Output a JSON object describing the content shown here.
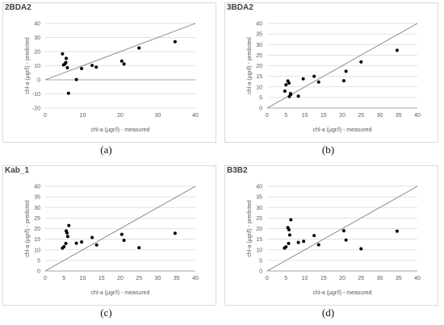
{
  "chart_data": [
    {
      "type": "scatter",
      "title": "2BDA2",
      "caption": "(a)",
      "xlabel": "chl-a (μgr/l) - measured",
      "ylabel": "chl-a (μgr/l) - predicted",
      "xlim": [
        0,
        40
      ],
      "ylim": [
        -20,
        40
      ],
      "xticks": [
        0,
        10,
        20,
        30,
        40
      ],
      "yticks": [
        -20,
        -10,
        0,
        10,
        20,
        30,
        40
      ],
      "reference_line": "1:1",
      "points": [
        [
          4.6,
          18.4
        ],
        [
          4.9,
          10.6
        ],
        [
          5.3,
          11.4
        ],
        [
          5.6,
          15.2
        ],
        [
          5.5,
          12.3
        ],
        [
          5.9,
          8.6
        ],
        [
          6.2,
          -9.5
        ],
        [
          8.3,
          0.2
        ],
        [
          9.7,
          8.0
        ],
        [
          12.5,
          10.2
        ],
        [
          13.6,
          9.0
        ],
        [
          20.4,
          13.3
        ],
        [
          21.0,
          11.2
        ],
        [
          25.0,
          22.6
        ],
        [
          34.6,
          27.0
        ]
      ]
    },
    {
      "type": "scatter",
      "title": "3BDA2",
      "caption": "(b)",
      "xlabel": "chl-a (μgr/l) - measured",
      "ylabel": "chl-a (μgr/l) - predicted",
      "xlim": [
        0,
        40
      ],
      "ylim": [
        0,
        40
      ],
      "xticks": [
        0,
        5,
        10,
        15,
        20,
        25,
        30,
        35,
        40
      ],
      "yticks": [
        0,
        5,
        10,
        15,
        20,
        25,
        30,
        35,
        40
      ],
      "reference_line": "1:1",
      "points": [
        [
          4.7,
          8.0
        ],
        [
          5.0,
          11.0
        ],
        [
          5.5,
          12.8
        ],
        [
          5.8,
          11.8
        ],
        [
          5.9,
          5.5
        ],
        [
          6.3,
          6.5
        ],
        [
          6.2,
          6.8
        ],
        [
          8.3,
          5.6
        ],
        [
          9.6,
          13.8
        ],
        [
          12.5,
          15.0
        ],
        [
          13.7,
          12.3
        ],
        [
          20.4,
          12.9
        ],
        [
          21.0,
          17.4
        ],
        [
          25.0,
          21.8
        ],
        [
          34.6,
          27.3
        ]
      ]
    },
    {
      "type": "scatter",
      "title": "Kab_1",
      "caption": "(c)",
      "xlabel": "chl-a (μgr/l) - measured",
      "ylabel": "chl-a (μgr/l) - predicted",
      "xlim": [
        0,
        40
      ],
      "ylim": [
        0,
        40
      ],
      "xticks": [
        0,
        5,
        10,
        15,
        20,
        25,
        30,
        35,
        40
      ],
      "yticks": [
        0,
        5,
        10,
        15,
        20,
        25,
        30,
        35,
        40
      ],
      "reference_line": "1:1",
      "points": [
        [
          4.6,
          10.8
        ],
        [
          5.0,
          11.5
        ],
        [
          5.5,
          13.0
        ],
        [
          5.6,
          18.9
        ],
        [
          5.8,
          18.0
        ],
        [
          6.0,
          16.3
        ],
        [
          6.3,
          21.5
        ],
        [
          8.3,
          13.1
        ],
        [
          9.7,
          13.7
        ],
        [
          12.5,
          15.8
        ],
        [
          13.7,
          12.3
        ],
        [
          20.4,
          17.3
        ],
        [
          21.0,
          14.5
        ],
        [
          25.0,
          11.0
        ],
        [
          34.6,
          17.8
        ]
      ]
    },
    {
      "type": "scatter",
      "title": "B3B2",
      "caption": "(d)",
      "xlabel": "chl-a (μgr/l) - measured",
      "ylabel": "chl-a (μgr/l) - predicted",
      "xlim": [
        0,
        40
      ],
      "ylim": [
        0,
        40
      ],
      "xticks": [
        0,
        5,
        10,
        15,
        20,
        25,
        30,
        35,
        40
      ],
      "yticks": [
        0,
        5,
        10,
        15,
        20,
        25,
        30,
        35,
        40
      ],
      "reference_line": "1:1",
      "points": [
        [
          4.6,
          10.8
        ],
        [
          5.0,
          11.4
        ],
        [
          5.5,
          20.5
        ],
        [
          5.8,
          19.5
        ],
        [
          5.7,
          13.0
        ],
        [
          6.0,
          17.0
        ],
        [
          6.3,
          24.2
        ],
        [
          8.3,
          13.5
        ],
        [
          9.7,
          14.0
        ],
        [
          12.5,
          16.7
        ],
        [
          13.7,
          12.4
        ],
        [
          20.4,
          19.0
        ],
        [
          21.0,
          14.6
        ],
        [
          25.0,
          10.5
        ],
        [
          34.6,
          18.8
        ]
      ]
    }
  ]
}
